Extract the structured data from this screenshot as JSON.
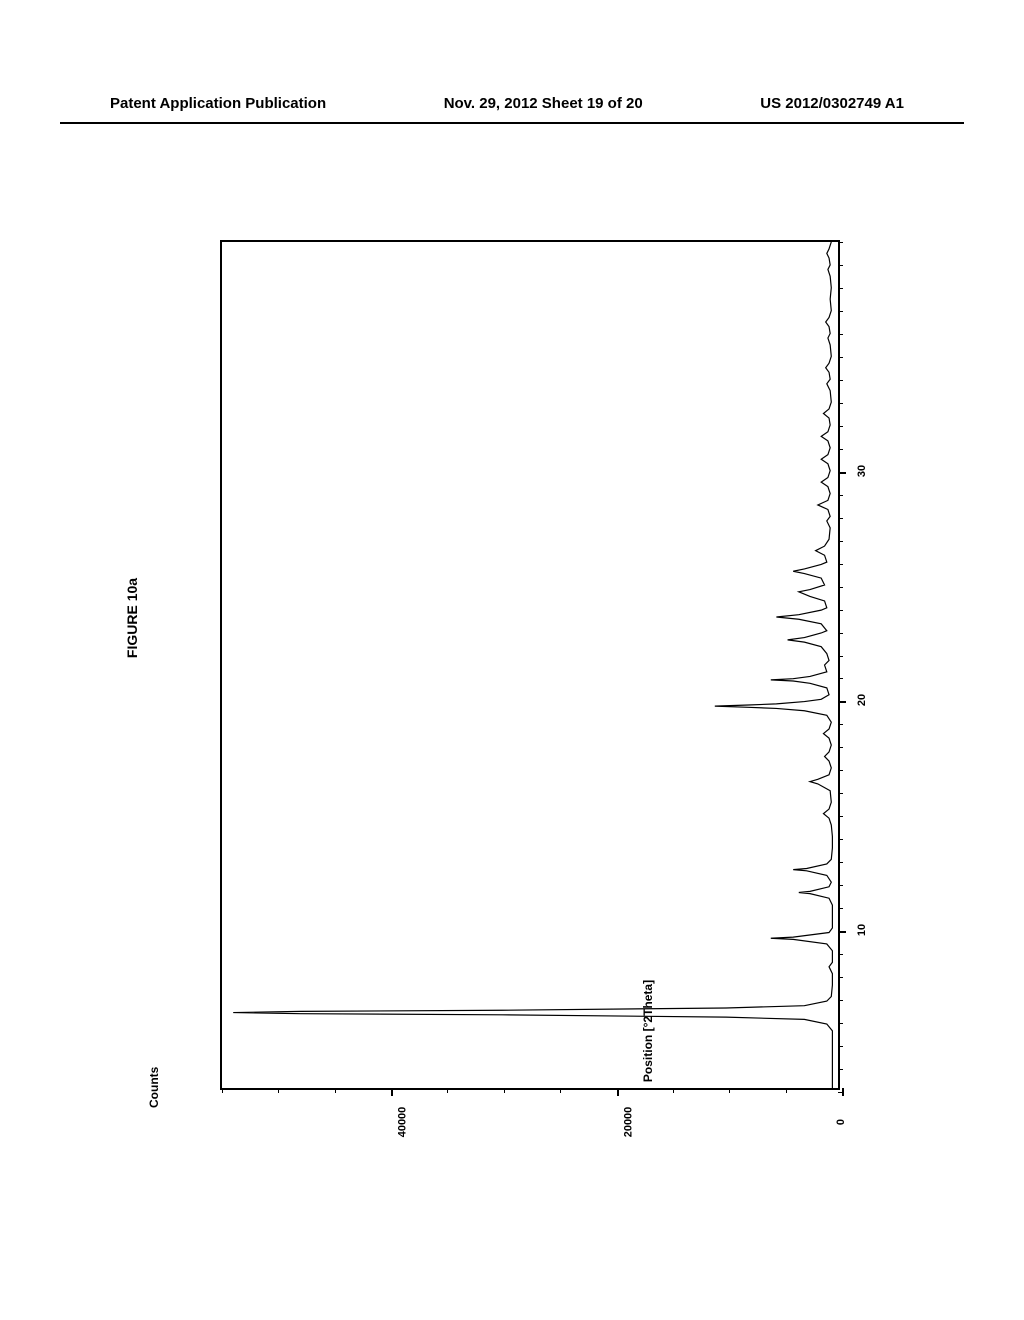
{
  "header": {
    "left": "Patent Application Publication",
    "center": "Nov. 29, 2012  Sheet 19 of 20",
    "right": "US 2012/0302749 A1"
  },
  "figure": {
    "title": "FIGURE 10a",
    "type": "line",
    "x_axis": {
      "label": "Position [°2Theta]",
      "min": 3,
      "max": 40,
      "major_ticks": [
        10,
        20,
        30
      ],
      "minor_tick_step": 1,
      "font_size": 12
    },
    "y_axis": {
      "label": "Counts",
      "min": 0,
      "max": 55000,
      "major_ticks": [
        0,
        20000,
        40000
      ],
      "minor_tick_step": 5000,
      "font_size": 12
    },
    "line_color": "#000000",
    "line_width": 1.2,
    "background_color": "#ffffff",
    "data_points": [
      [
        3.0,
        500
      ],
      [
        4.0,
        500
      ],
      [
        4.5,
        500
      ],
      [
        5.0,
        500
      ],
      [
        5.5,
        500
      ],
      [
        5.8,
        1000
      ],
      [
        6.0,
        3000
      ],
      [
        6.1,
        10000
      ],
      [
        6.2,
        30000
      ],
      [
        6.25,
        48000
      ],
      [
        6.3,
        54000
      ],
      [
        6.35,
        48000
      ],
      [
        6.4,
        30000
      ],
      [
        6.5,
        10000
      ],
      [
        6.6,
        3000
      ],
      [
        6.8,
        1000
      ],
      [
        7.0,
        600
      ],
      [
        7.5,
        500
      ],
      [
        8.0,
        500
      ],
      [
        8.3,
        800
      ],
      [
        8.5,
        500
      ],
      [
        9.0,
        500
      ],
      [
        9.3,
        1000
      ],
      [
        9.5,
        4000
      ],
      [
        9.55,
        6000
      ],
      [
        9.6,
        4000
      ],
      [
        9.8,
        800
      ],
      [
        10.0,
        500
      ],
      [
        10.5,
        500
      ],
      [
        11.0,
        500
      ],
      [
        11.3,
        800
      ],
      [
        11.5,
        2500
      ],
      [
        11.55,
        3500
      ],
      [
        11.6,
        2500
      ],
      [
        11.8,
        800
      ],
      [
        12.0,
        600
      ],
      [
        12.3,
        1000
      ],
      [
        12.5,
        2800
      ],
      [
        12.55,
        4000
      ],
      [
        12.6,
        2800
      ],
      [
        12.8,
        1000
      ],
      [
        13.0,
        600
      ],
      [
        13.5,
        500
      ],
      [
        14.0,
        500
      ],
      [
        14.5,
        600
      ],
      [
        14.8,
        800
      ],
      [
        15.0,
        1300
      ],
      [
        15.2,
        800
      ],
      [
        15.5,
        600
      ],
      [
        16.0,
        700
      ],
      [
        16.3,
        1800
      ],
      [
        16.4,
        2500
      ],
      [
        16.5,
        1800
      ],
      [
        16.7,
        800
      ],
      [
        17.0,
        600
      ],
      [
        17.3,
        800
      ],
      [
        17.5,
        1200
      ],
      [
        17.7,
        800
      ],
      [
        18.0,
        600
      ],
      [
        18.3,
        800
      ],
      [
        18.5,
        1300
      ],
      [
        18.7,
        800
      ],
      [
        19.0,
        600
      ],
      [
        19.3,
        1000
      ],
      [
        19.5,
        3000
      ],
      [
        19.6,
        5500
      ],
      [
        19.65,
        8000
      ],
      [
        19.7,
        11000
      ],
      [
        19.75,
        8000
      ],
      [
        19.8,
        5500
      ],
      [
        19.9,
        3000
      ],
      [
        20.0,
        1500
      ],
      [
        20.2,
        800
      ],
      [
        20.5,
        1000
      ],
      [
        20.7,
        2500
      ],
      [
        20.8,
        4000
      ],
      [
        20.85,
        6000
      ],
      [
        20.9,
        4000
      ],
      [
        21.0,
        2500
      ],
      [
        21.2,
        1000
      ],
      [
        21.5,
        1200
      ],
      [
        21.7,
        800
      ],
      [
        22.0,
        1000
      ],
      [
        22.3,
        1500
      ],
      [
        22.5,
        3000
      ],
      [
        22.6,
        4500
      ],
      [
        22.7,
        3000
      ],
      [
        22.9,
        1500
      ],
      [
        23.0,
        1000
      ],
      [
        23.3,
        1500
      ],
      [
        23.5,
        3500
      ],
      [
        23.6,
        5500
      ],
      [
        23.7,
        3500
      ],
      [
        23.9,
        1500
      ],
      [
        24.0,
        1000
      ],
      [
        24.3,
        1200
      ],
      [
        24.5,
        2500
      ],
      [
        24.7,
        3500
      ],
      [
        24.8,
        2500
      ],
      [
        25.0,
        1200
      ],
      [
        25.3,
        1500
      ],
      [
        25.5,
        3000
      ],
      [
        25.6,
        4000
      ],
      [
        25.7,
        3000
      ],
      [
        25.9,
        1500
      ],
      [
        26.0,
        1000
      ],
      [
        26.3,
        1200
      ],
      [
        26.5,
        2000
      ],
      [
        26.7,
        1200
      ],
      [
        27.0,
        800
      ],
      [
        27.5,
        700
      ],
      [
        27.8,
        1000
      ],
      [
        28.0,
        700
      ],
      [
        28.3,
        900
      ],
      [
        28.5,
        1800
      ],
      [
        28.7,
        900
      ],
      [
        29.0,
        700
      ],
      [
        29.3,
        900
      ],
      [
        29.5,
        1500
      ],
      [
        29.7,
        900
      ],
      [
        30.0,
        700
      ],
      [
        30.3,
        900
      ],
      [
        30.5,
        1500
      ],
      [
        30.7,
        900
      ],
      [
        31.0,
        700
      ],
      [
        31.3,
        900
      ],
      [
        31.5,
        1500
      ],
      [
        31.7,
        900
      ],
      [
        32.0,
        700
      ],
      [
        32.3,
        800
      ],
      [
        32.5,
        1300
      ],
      [
        32.7,
        800
      ],
      [
        33.0,
        600
      ],
      [
        33.5,
        700
      ],
      [
        33.8,
        1000
      ],
      [
        34.0,
        700
      ],
      [
        34.3,
        800
      ],
      [
        34.5,
        1100
      ],
      [
        34.7,
        800
      ],
      [
        35.0,
        600
      ],
      [
        35.5,
        700
      ],
      [
        35.8,
        900
      ],
      [
        36.0,
        700
      ],
      [
        36.3,
        800
      ],
      [
        36.5,
        1100
      ],
      [
        36.7,
        800
      ],
      [
        37.0,
        600
      ],
      [
        37.5,
        700
      ],
      [
        38.0,
        600
      ],
      [
        38.5,
        700
      ],
      [
        38.8,
        900
      ],
      [
        39.0,
        700
      ],
      [
        39.3,
        800
      ],
      [
        39.5,
        1000
      ],
      [
        39.7,
        800
      ],
      [
        40.0,
        600
      ]
    ]
  }
}
